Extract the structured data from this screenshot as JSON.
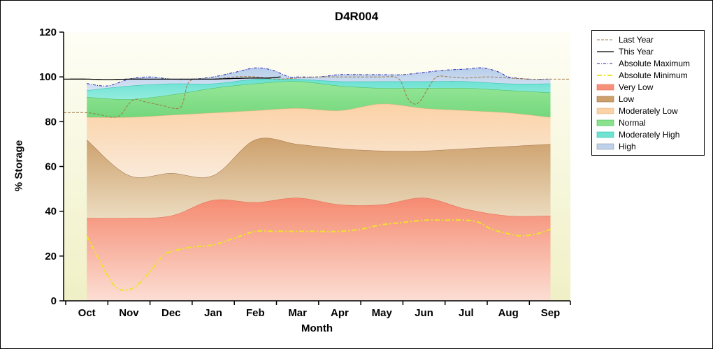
{
  "chart_data": {
    "type": "area",
    "title": "D4R004",
    "xlabel": "Month",
    "ylabel": "% Storage",
    "ylim": [
      0,
      120
    ],
    "yticks": [
      0,
      20,
      40,
      60,
      80,
      100,
      120
    ],
    "categories": [
      "Oct",
      "Nov",
      "Dec",
      "Jan",
      "Feb",
      "Mar",
      "Apr",
      "May",
      "Jun",
      "Jul",
      "Aug",
      "Sep"
    ],
    "legend_position": "right",
    "plot_bg_top": "#fefef6",
    "plot_bg_bottom": "#f0f0c6",
    "axis_color": "#000000",
    "bands": [
      {
        "name": "Very Low",
        "values": [
          37,
          37,
          38,
          45,
          44,
          46,
          43,
          43,
          46,
          41,
          38,
          38
        ],
        "fill_top": "#f58a70",
        "fill_bottom": "#fcded4",
        "edge": "#e06a50",
        "legend_color": "#f7907a"
      },
      {
        "name": "Low",
        "values": [
          72,
          56,
          57,
          56,
          72,
          70,
          68,
          67,
          67,
          68,
          69,
          70
        ],
        "fill_top": "#cda06c",
        "fill_bottom": "#ecdcc0",
        "edge": "#9c7448",
        "legend_color": "#cda06c"
      },
      {
        "name": "Moderately Low",
        "values": [
          82,
          82,
          83,
          84,
          85,
          86,
          85,
          88,
          86,
          85,
          84,
          82
        ],
        "fill_top": "#fbd2a6",
        "fill_bottom": "#faeada",
        "edge": "#e8b383",
        "legend_color": "#fbd2a6"
      },
      {
        "name": "Normal",
        "values": [
          91,
          90,
          92,
          95,
          97,
          98,
          96,
          95,
          95,
          95,
          94,
          93
        ],
        "fill_top": "#98e79a",
        "fill_bottom": "#74d77c",
        "edge": "#44bb55",
        "legend_color": "#8ae28e"
      },
      {
        "name": "Moderately High",
        "values": [
          94,
          96,
          97,
          97,
          99,
          99,
          98,
          98,
          98,
          98,
          97,
          97
        ],
        "fill_top": "#68e0d1",
        "fill_bottom": "#94ecdf",
        "edge": "#2abfae",
        "legend_color": "#6fe2d2"
      },
      {
        "name": "High",
        "x": [
          0,
          0.5,
          1,
          1.5,
          2,
          2.5,
          3,
          3.5,
          4,
          4.4,
          4.8,
          5,
          5.5,
          6,
          6.5,
          7,
          7.5,
          8,
          8.5,
          9,
          9.4,
          9.8,
          10,
          10.5,
          11
        ],
        "values": [
          97,
          96,
          99,
          100,
          99,
          99,
          100,
          102,
          104,
          103,
          100,
          100,
          100,
          101,
          101,
          101,
          101,
          102,
          103,
          103.5,
          104,
          102,
          100,
          99,
          99
        ],
        "fill_top": "#b7cde9",
        "fill_bottom": "#d6e3f4",
        "edge": "",
        "legend_color": "#bdd1ea"
      }
    ],
    "lines": [
      {
        "name": "Last Year",
        "color": "#a07848",
        "width": 1,
        "dash": "4 2",
        "x": [
          -0.55,
          0,
          0.35,
          0.6,
          0.8,
          1.0,
          1.15,
          1.35,
          1.6,
          1.85,
          2.05,
          2.25,
          2.4,
          2.6,
          3,
          3.5,
          4,
          4.5,
          5,
          5.5,
          6,
          6.5,
          7,
          7.3,
          7.45,
          7.6,
          7.75,
          7.9,
          8.1,
          8.3,
          8.6,
          9,
          9.5,
          10,
          10.5,
          11,
          11.45
        ],
        "y": [
          84,
          84,
          83,
          82,
          83,
          88,
          90,
          89,
          88,
          87,
          86,
          87,
          97,
          99,
          99,
          100,
          100,
          99,
          99.5,
          100,
          100,
          100,
          100,
          100,
          98,
          91,
          88,
          89,
          95,
          100,
          100,
          99.5,
          100,
          99.5,
          99,
          99,
          99
        ]
      },
      {
        "name": "This Year",
        "color": "#000000",
        "width": 1.3,
        "dash": "",
        "x": [
          -0.55,
          0,
          0.5,
          1,
          1.5,
          2,
          2.5,
          3,
          3.5,
          4,
          4.3,
          4.6
        ],
        "y": [
          99,
          99,
          98.8,
          99,
          99,
          99,
          99,
          99,
          99.3,
          99.5,
          99.5,
          100
        ]
      },
      {
        "name": "Absolute Maximum",
        "color": "#2020b0",
        "width": 1,
        "dash": "4 2 1 2",
        "x": [
          0,
          0.5,
          1,
          1.5,
          2,
          2.5,
          3,
          3.5,
          4,
          4.4,
          4.8,
          5,
          5.5,
          6,
          6.5,
          7,
          7.5,
          8,
          8.5,
          9,
          9.4,
          9.8,
          10,
          10.5,
          11
        ],
        "y": [
          97,
          96,
          99,
          100,
          99,
          99,
          100,
          102,
          104,
          103,
          100,
          100,
          100,
          101,
          101,
          101,
          101,
          102,
          103,
          103.5,
          104,
          102,
          100,
          99,
          99
        ]
      },
      {
        "name": "Absolute Minimum",
        "color": "#efe32a",
        "width": 2,
        "dash": "7 3 2 3",
        "x": [
          0,
          0.3,
          0.6,
          0.8,
          1,
          1.2,
          1.5,
          1.8,
          2,
          2.5,
          3,
          3.5,
          4,
          4.5,
          5,
          5.5,
          6,
          6.5,
          7,
          7.5,
          8,
          8.5,
          9,
          9.3,
          9.6,
          10,
          10.3,
          10.7,
          11
        ],
        "y": [
          29,
          18,
          8,
          5,
          5,
          7,
          13,
          20,
          22,
          24,
          25,
          28,
          31,
          31,
          31,
          31,
          31,
          32,
          34,
          35,
          36,
          36,
          36,
          35,
          32,
          30,
          29,
          30,
          32
        ]
      }
    ]
  }
}
